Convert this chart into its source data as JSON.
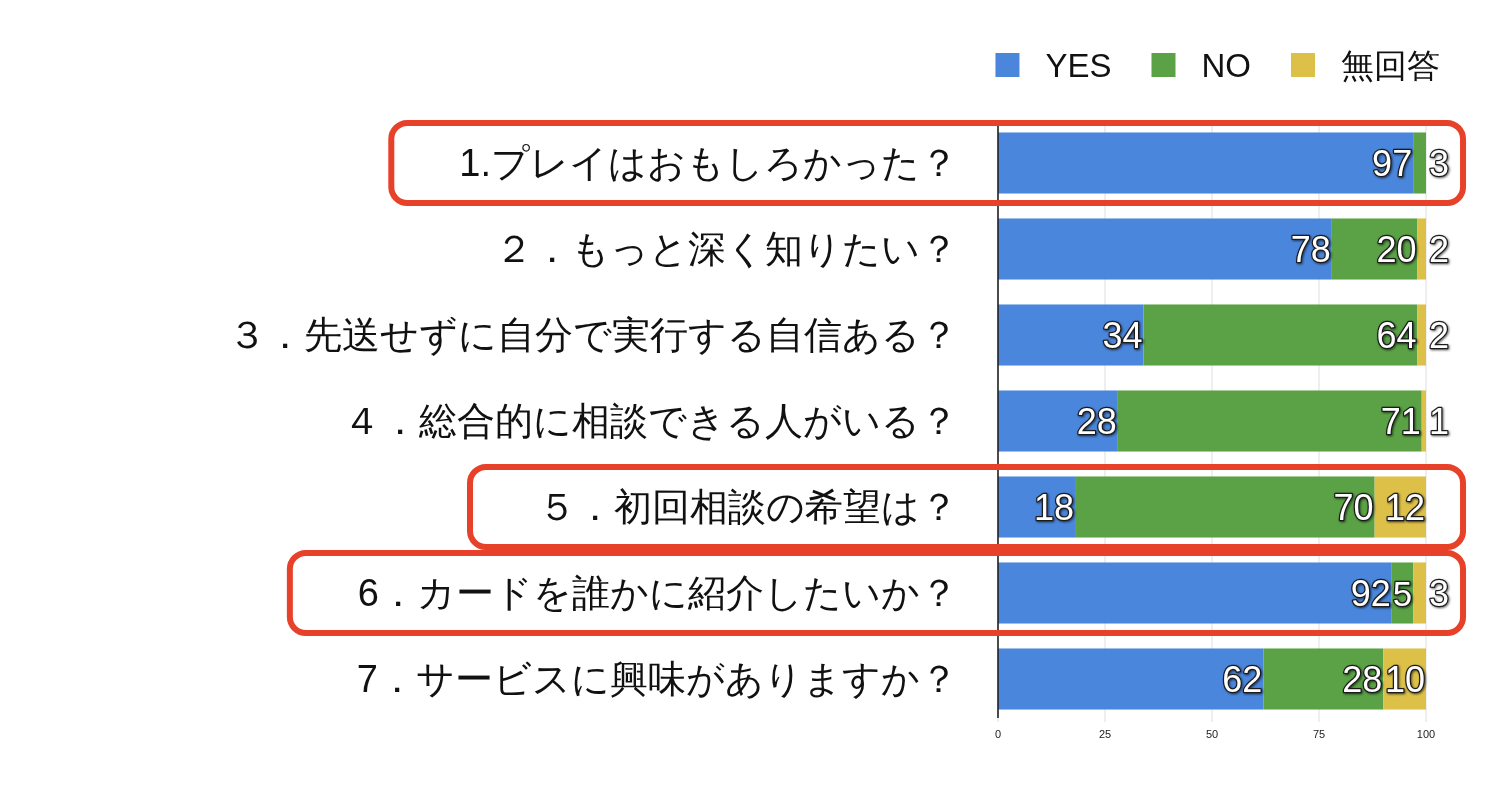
{
  "chart_data": {
    "type": "bar",
    "orientation": "horizontal",
    "stacked": true,
    "categories": [
      "1.プレイはおもしろかった？",
      "２．もっと深く知りたい？",
      "３．先送せずに自分で実行する自信ある？",
      "４．総合的に相談できる人がいる？",
      "５．初回相談の希望は？",
      "6．カードを誰かに紹介したいか？",
      "7．サービスに興味がありますか？"
    ],
    "series": [
      {
        "name": "YES",
        "color": "#4a86db",
        "values": [
          97,
          78,
          34,
          28,
          18,
          92,
          62
        ]
      },
      {
        "name": "NO",
        "color": "#5aa245",
        "values": [
          3,
          20,
          64,
          71,
          70,
          5,
          28
        ]
      },
      {
        "name": "無回答",
        "color": "#dcc048",
        "values": [
          null,
          2,
          2,
          1,
          12,
          3,
          10
        ]
      }
    ],
    "xlim": [
      0,
      100
    ],
    "xticks": [
      0,
      25,
      50,
      75,
      100
    ],
    "grid": "x",
    "legend": "top right",
    "data_labels": true
  }
}
